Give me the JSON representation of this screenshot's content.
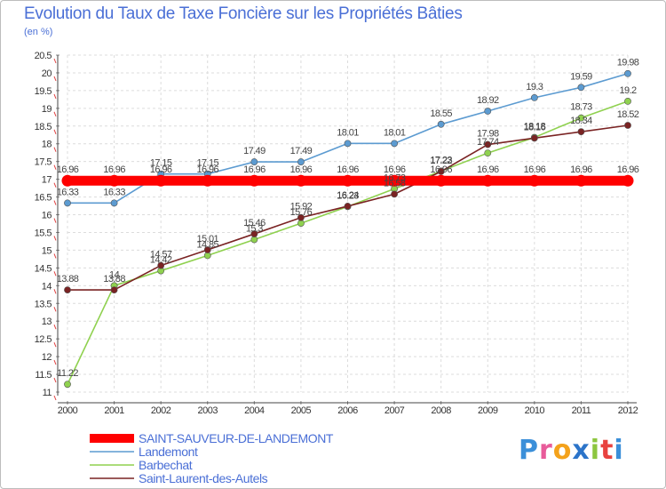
{
  "header": {
    "title": "Evolution du Taux de Taxe Foncière sur les Propriétés Bâties",
    "subtitle": "(en %)"
  },
  "logo": {
    "text": "Proxiti"
  },
  "chart_data": {
    "type": "line",
    "title": "Evolution du Taux de Taxe Foncière sur les Propriétés Bâties",
    "ylabel": "(en %)",
    "xlabel": "",
    "x": [
      "2000",
      "2001",
      "2002",
      "2003",
      "2004",
      "2005",
      "2006",
      "2007",
      "2008",
      "2009",
      "2010",
      "2011",
      "2012"
    ],
    "ylim": [
      11,
      20.5
    ],
    "yticks": [
      "11",
      "11.5",
      "12",
      "12.5",
      "13",
      "13.5",
      "14",
      "14.5",
      "15",
      "15.5",
      "16",
      "16.5",
      "17",
      "17.5",
      "18",
      "18.5",
      "19",
      "19.5",
      "20",
      "20.5"
    ],
    "grid": true,
    "legend_position": "bottom-left",
    "series": [
      {
        "name": "SAINT-SAUVEUR-DE-LANDEMONT",
        "color": "#ff0000",
        "values": [
          16.96,
          16.96,
          16.96,
          16.96,
          16.96,
          16.96,
          16.96,
          16.96,
          16.96,
          16.96,
          16.96,
          16.96,
          16.96
        ],
        "labels": [
          "16.96",
          "16.96",
          "16.96",
          "16.96",
          "16.96",
          "16.96",
          "16.96",
          "16.96",
          "16.96",
          "16.96",
          "16.96",
          "16.96",
          "16.96"
        ]
      },
      {
        "name": "Landemont",
        "color": "#5c9bd1",
        "values": [
          16.33,
          16.33,
          17.15,
          17.15,
          17.49,
          17.49,
          18.01,
          18.01,
          18.55,
          18.92,
          19.3,
          19.59,
          19.98
        ],
        "labels": [
          "16.33",
          "16.33",
          "17.15",
          "17.15",
          "17.49",
          "17.49",
          "18.01",
          "18.01",
          "18.55",
          "18.92",
          "19.3",
          "19.59",
          "19.98"
        ]
      },
      {
        "name": "Barbechat",
        "color": "#8fd14f",
        "values": [
          11.22,
          14.0,
          14.42,
          14.85,
          15.3,
          15.76,
          16.23,
          16.73,
          17.23,
          17.74,
          18.18,
          18.73,
          19.2
        ],
        "labels": [
          "11.22",
          "14",
          "14.42",
          "14.85",
          "15.3",
          "15.76",
          "16.23",
          "16.73",
          "17.23",
          "17.74",
          "18.18",
          "18.73",
          "19.2"
        ]
      },
      {
        "name": "Saint-Laurent-des-Autels",
        "color": "#7a2323",
        "values": [
          13.88,
          13.88,
          14.57,
          15.01,
          15.46,
          15.92,
          16.24,
          16.58,
          17.22,
          17.98,
          18.16,
          18.34,
          18.52
        ],
        "labels": [
          "13.88",
          "13.88",
          "14.57",
          "15.01",
          "15.46",
          "15.92",
          "16.24",
          "16.58",
          "17.22",
          "17.98",
          "18.16",
          "18.34",
          "18.52"
        ]
      }
    ]
  }
}
